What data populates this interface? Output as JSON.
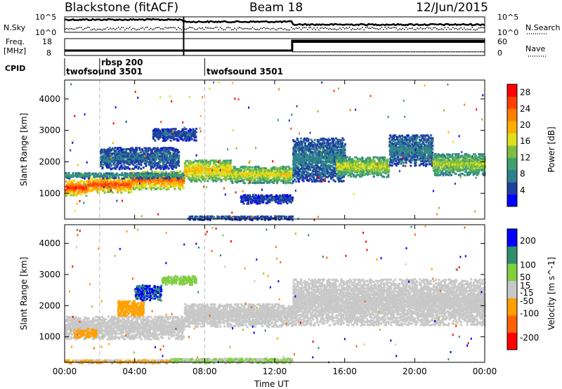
{
  "header": {
    "title": "Blackstone (fitACF)",
    "beam": "Beam 18",
    "date": "12/Jun/2015"
  },
  "panels": {
    "nsky_label": "N.Sky",
    "nsearch_label": "N.Search",
    "n_ticks": [
      "10^5",
      "10^0"
    ],
    "freq_label_1": "Freq.",
    "freq_label_2": "[MHz]",
    "freq_ticks": [
      "18",
      "8"
    ],
    "nave_label": "Nave",
    "nave_ticks": [
      "60",
      "0"
    ],
    "cpid_label": "CPID",
    "cpid_entries": [
      {
        "label": "twofsound 3501",
        "start": 0,
        "end": 2
      },
      {
        "label": "rbsp 200",
        "start": 2,
        "end": 8
      },
      {
        "label": "twofsound 3501",
        "start": 8,
        "end": 24
      }
    ]
  },
  "chart_data": [
    {
      "type": "heatmap",
      "name": "power",
      "ylabel": "Slant Range [km]",
      "xlabel": "Time UT",
      "x_ticks": [
        "00:00",
        "04:00",
        "08:00",
        "12:00",
        "16:00",
        "20:00",
        "00:00"
      ],
      "xlim": [
        0,
        24
      ],
      "y_ticks": [
        "1000",
        "2000",
        "3000",
        "4000"
      ],
      "ylim": [
        180,
        4600
      ],
      "colorbar": {
        "label": "Power [dB]",
        "range": [
          0,
          30
        ],
        "ticks": [
          "28",
          "24",
          "20",
          "16",
          "12",
          "8",
          "4"
        ],
        "tick_values": [
          28,
          24,
          20,
          16,
          12,
          8,
          4
        ],
        "colors": [
          "#0000ff",
          "#1f3f9f",
          "#2e7f8f",
          "#3f9f6f",
          "#7fbf3f",
          "#dfdf1f",
          "#ffaf00",
          "#ff7f00",
          "#ff3f00",
          "#ff0000"
        ]
      },
      "bands": [
        {
          "t0": 0.0,
          "t1": 1.3,
          "r0": 950,
          "r1": 1450,
          "value": 27
        },
        {
          "t0": 1.3,
          "t1": 3.8,
          "r0": 1050,
          "r1": 1550,
          "value": 26
        },
        {
          "t0": 3.8,
          "t1": 6.8,
          "r0": 1150,
          "r1": 1750,
          "value": 24
        },
        {
          "t0": 6.8,
          "t1": 9.5,
          "r0": 1400,
          "r1": 2100,
          "value": 19
        },
        {
          "t0": 9.5,
          "t1": 13.0,
          "r0": 1350,
          "r1": 1900,
          "value": 17
        },
        {
          "t0": 0.0,
          "t1": 6.8,
          "r0": 1500,
          "r1": 1700,
          "value": 10
        },
        {
          "t0": 2.0,
          "t1": 6.5,
          "r0": 1800,
          "r1": 2500,
          "value": 7
        },
        {
          "t0": 5.0,
          "t1": 7.5,
          "r0": 2700,
          "r1": 3100,
          "value": 6
        },
        {
          "t0": 13.0,
          "t1": 16.0,
          "r0": 1400,
          "r1": 2800,
          "value": 8
        },
        {
          "t0": 15.5,
          "t1": 18.5,
          "r0": 1550,
          "r1": 2200,
          "value": 16
        },
        {
          "t0": 18.5,
          "t1": 21.0,
          "r0": 1900,
          "r1": 2900,
          "value": 8
        },
        {
          "t0": 21.0,
          "t1": 24.0,
          "r0": 1600,
          "r1": 2300,
          "value": 15
        },
        {
          "t0": 10.0,
          "t1": 13.0,
          "r0": 700,
          "r1": 1000,
          "value": 5
        },
        {
          "t0": 7.0,
          "t1": 13.0,
          "r0": 180,
          "r1": 320,
          "value": 6
        }
      ]
    },
    {
      "type": "heatmap",
      "name": "velocity",
      "ylabel": "Slant Range [km]",
      "xlabel": "Time UT",
      "x_ticks": [
        "00:00",
        "04:00",
        "08:00",
        "12:00",
        "16:00",
        "20:00",
        "00:00"
      ],
      "xlim": [
        0,
        24
      ],
      "y_ticks": [
        "1000",
        "2000",
        "3000",
        "4000"
      ],
      "ylim": [
        180,
        4600
      ],
      "colorbar": {
        "label": "Velocity [m s^-1]",
        "range": [
          -250,
          250
        ],
        "ticks": [
          "200",
          "100",
          "50",
          "15",
          "-15",
          "-50",
          "-100",
          "-200"
        ],
        "tick_values": [
          200,
          100,
          50,
          15,
          -15,
          -50,
          -100,
          -200
        ],
        "colors": [
          "#ff0000",
          "#ff6000",
          "#ffa000",
          "#c8c8c8",
          "#7fcf3f",
          "#2f8f6f",
          "#0000ff"
        ]
      },
      "bands": [
        {
          "t0": 0.0,
          "t1": 6.8,
          "r0": 950,
          "r1": 1700,
          "value": 0
        },
        {
          "t0": 0.5,
          "t1": 1.8,
          "r0": 1000,
          "r1": 1300,
          "value": -60
        },
        {
          "t0": 6.8,
          "t1": 13.0,
          "r0": 1350,
          "r1": 2100,
          "value": 0
        },
        {
          "t0": 3.0,
          "t1": 4.5,
          "r0": 1700,
          "r1": 2200,
          "value": -70
        },
        {
          "t0": 4.0,
          "t1": 5.5,
          "r0": 2200,
          "r1": 2700,
          "value": 180
        },
        {
          "t0": 5.5,
          "t1": 7.5,
          "r0": 2700,
          "r1": 3000,
          "value": 60
        },
        {
          "t0": 13.0,
          "t1": 24.0,
          "r0": 1400,
          "r1": 2900,
          "value": 0
        },
        {
          "t0": 6.0,
          "t1": 13.0,
          "r0": 180,
          "r1": 350,
          "value": 40
        },
        {
          "t0": 0.0,
          "t1": 6.0,
          "r0": 180,
          "r1": 300,
          "value": -40
        }
      ]
    }
  ]
}
